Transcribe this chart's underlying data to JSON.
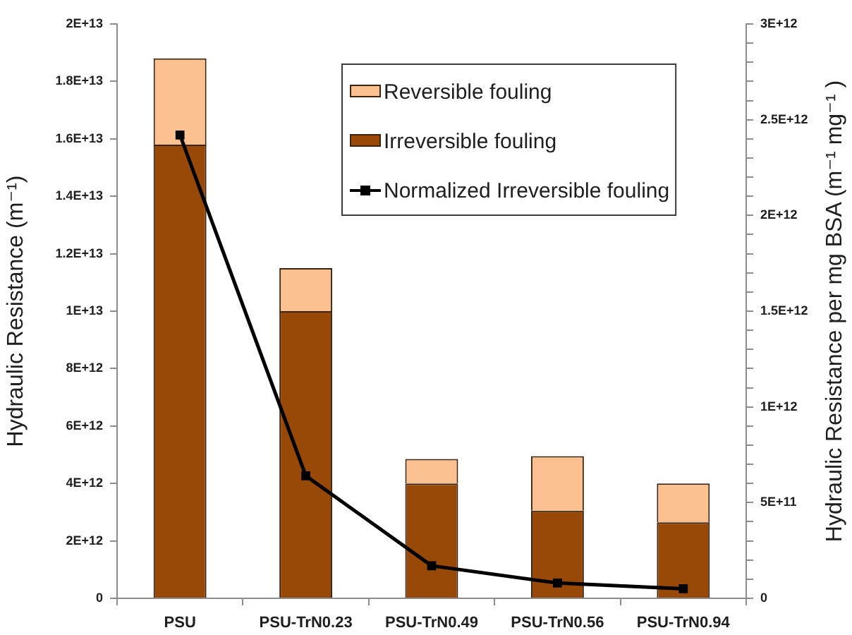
{
  "chart_data": {
    "type": "bar",
    "stacked": true,
    "categories": [
      "PSU",
      "PSU-TrN0.23",
      "PSU-TrN0.49",
      "PSU-TrN0.56",
      "PSU-TrN0.94"
    ],
    "series": [
      {
        "name": "Irreversible fouling",
        "color": "#984807",
        "values": [
          15800000000000.0,
          10000000000000.0,
          4000000000000.0,
          3050000000000.0,
          2650000000000.0
        ]
      },
      {
        "name": "Reversible fouling",
        "color": "#fac090",
        "values": [
          3000000000000.0,
          1500000000000.0,
          850000000000.0,
          1900000000000.0,
          1350000000000.0
        ]
      },
      {
        "name": "Normalized Irreversible fouling",
        "type": "line",
        "axis": "y2",
        "color": "#000000",
        "marker": "square",
        "values": [
          2420000000000.0,
          640000000000.0,
          170000000000.0,
          80000000000.0,
          50000000000.0
        ]
      }
    ],
    "ylabel": "Hydraulic Resistance (m⁻¹)",
    "y2label": "Hydraulic Resistance per mg BSA (m⁻¹ mg⁻¹ )",
    "ylim": [
      0,
      20000000000000.0
    ],
    "yticks": [
      0,
      {
        "value": 2000000000000.0,
        "label": "2E+12"
      },
      {
        "value": 4000000000000.0,
        "label": "4E+12"
      },
      {
        "value": 6000000000000.0,
        "label": "6E+12"
      },
      {
        "value": 8000000000000.0,
        "label": "8E+12"
      },
      {
        "value": 10000000000000.0,
        "label": "1E+13"
      },
      {
        "value": 12000000000000.0,
        "label": "1.2E+13"
      },
      {
        "value": 14000000000000.0,
        "label": "1.4E+13"
      },
      {
        "value": 16000000000000.0,
        "label": "1.6E+13"
      },
      {
        "value": 18000000000000.0,
        "label": "1.8E+13"
      },
      {
        "value": 20000000000000.0,
        "label": "2E+13"
      }
    ],
    "y2lim": [
      0,
      3000000000000.0
    ],
    "y2ticks": [
      0,
      {
        "value": 100000000000.0,
        "label": null
      },
      {
        "value": 200000000000.0,
        "label": null
      },
      {
        "value": 300000000000.0,
        "label": null
      },
      {
        "value": 400000000000.0,
        "label": null
      },
      {
        "value": 500000000000.0,
        "label": "5E+11"
      },
      {
        "value": 600000000000.0,
        "label": null
      },
      {
        "value": 700000000000.0,
        "label": null
      },
      {
        "value": 800000000000.0,
        "label": null
      },
      {
        "value": 900000000000.0,
        "label": null
      },
      {
        "value": 1000000000000.0,
        "label": "1E+12"
      },
      {
        "value": 1100000000000.0,
        "label": null
      },
      {
        "value": 1200000000000.0,
        "label": null
      },
      {
        "value": 1300000000000.0,
        "label": null
      },
      {
        "value": 1400000000000.0,
        "label": null
      },
      {
        "value": 1500000000000.0,
        "label": "1.5E+12"
      },
      {
        "value": 1600000000000.0,
        "label": null
      },
      {
        "value": 1700000000000.0,
        "label": null
      },
      {
        "value": 1800000000000.0,
        "label": null
      },
      {
        "value": 1900000000000.0,
        "label": null
      },
      {
        "value": 2000000000000.0,
        "label": "2E+12"
      },
      {
        "value": 2100000000000.0,
        "label": null
      },
      {
        "value": 2200000000000.0,
        "label": null
      },
      {
        "value": 2300000000000.0,
        "label": null
      },
      {
        "value": 2400000000000.0,
        "label": null
      },
      {
        "value": 2500000000000.0,
        "label": "2.5E+12"
      },
      {
        "value": 2600000000000.0,
        "label": null
      },
      {
        "value": 2700000000000.0,
        "label": null
      },
      {
        "value": 2800000000000.0,
        "label": null
      },
      {
        "value": 2900000000000.0,
        "label": null
      },
      {
        "value": 3000000000000.0,
        "label": "3E+12"
      }
    ],
    "legend": "top right"
  }
}
